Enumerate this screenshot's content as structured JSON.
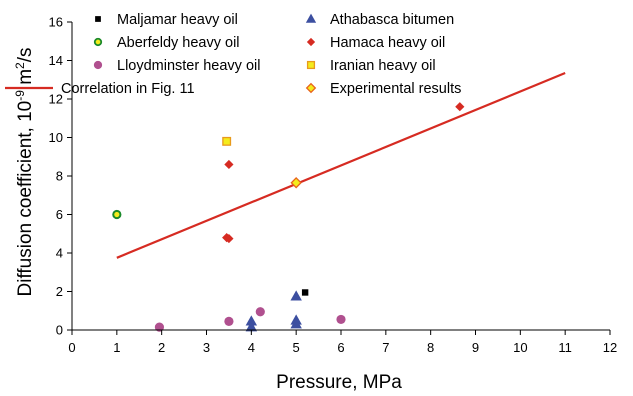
{
  "chart_data": {
    "type": "scatter",
    "xlabel": "Pressure, MPa",
    "ylabel_parts": [
      "Diffusion coefficient, 10",
      "-9",
      " m",
      "2",
      "/s"
    ],
    "xlim": [
      0,
      12
    ],
    "ylim": [
      0,
      16
    ],
    "xticks": [
      0,
      1,
      2,
      3,
      4,
      5,
      6,
      7,
      8,
      9,
      10,
      11,
      12
    ],
    "yticks": [
      0,
      2,
      4,
      6,
      8,
      10,
      12,
      14,
      16
    ],
    "grid": false,
    "legend_position": "top",
    "series": [
      {
        "name": "Maljamar heavy oil",
        "marker": "square",
        "color": "#000000",
        "points": [
          [
            5.2,
            1.95
          ]
        ]
      },
      {
        "name": "Athabasca bitumen",
        "marker": "triangle",
        "color": "#3c4fa0",
        "points": [
          [
            4.0,
            0.45
          ],
          [
            4.0,
            0.15
          ],
          [
            5.0,
            1.75
          ],
          [
            5.0,
            0.5
          ],
          [
            5.0,
            0.3
          ]
        ]
      },
      {
        "name": "Aberfeldy heavy oil",
        "marker": "ring",
        "color": "#1a8a2a",
        "fill": "#f4ec1c",
        "points": [
          [
            1.0,
            6.0
          ]
        ]
      },
      {
        "name": "Hamaca heavy oil",
        "marker": "diamond",
        "color": "#d62b22",
        "points": [
          [
            3.5,
            8.6
          ],
          [
            3.45,
            4.8
          ],
          [
            3.5,
            4.75
          ],
          [
            8.65,
            11.6
          ]
        ]
      },
      {
        "name": "Lloydminster heavy oil",
        "marker": "circle",
        "color": "#b0508f",
        "points": [
          [
            1.95,
            0.15
          ],
          [
            3.5,
            0.45
          ],
          [
            4.2,
            0.95
          ],
          [
            6.0,
            0.55
          ]
        ]
      },
      {
        "name": "Iranian heavy oil",
        "marker": "square-open",
        "color": "#e89a1c",
        "fill": "#f4ec1c",
        "points": [
          [
            3.45,
            9.8
          ]
        ]
      },
      {
        "name": "Correlation in Fig. 11",
        "marker": "line",
        "color": "#d62b22",
        "points": [
          [
            1.0,
            3.75
          ],
          [
            11.0,
            13.35
          ]
        ]
      },
      {
        "name": "Experimental results",
        "marker": "diamond-open",
        "color": "#e8631c",
        "fill": "#f4ec1c",
        "points": [
          [
            5.0,
            7.65
          ]
        ]
      }
    ]
  }
}
